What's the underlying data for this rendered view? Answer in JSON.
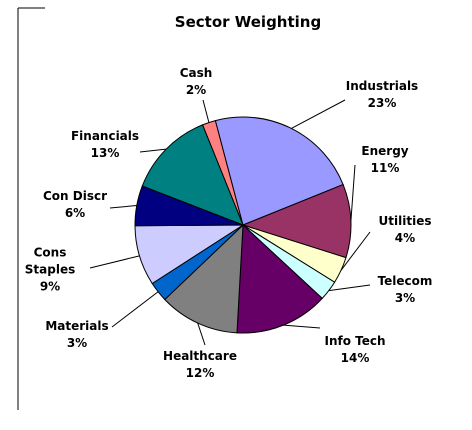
{
  "chart_data": {
    "type": "pie",
    "title": "Sector Weighting",
    "categories": [
      "Cash",
      "Industrials",
      "Energy",
      "Utilities",
      "Telecom",
      "Info Tech",
      "Healthcare",
      "Materials",
      "Cons Staples",
      "Con Discr",
      "Financials"
    ],
    "values": [
      2,
      23,
      11,
      4,
      3,
      14,
      12,
      3,
      9,
      6,
      13
    ],
    "value_labels": [
      "2%",
      "23%",
      "11%",
      "4%",
      "3%",
      "14%",
      "12%",
      "3%",
      "9%",
      "6%",
      "13%"
    ],
    "colors": [
      "#ff8080",
      "#9999ff",
      "#993366",
      "#ffffcc",
      "#ccffff",
      "#660066",
      "#808080",
      "#0066cc",
      "#ccccff",
      "#000080",
      "#008080"
    ]
  }
}
